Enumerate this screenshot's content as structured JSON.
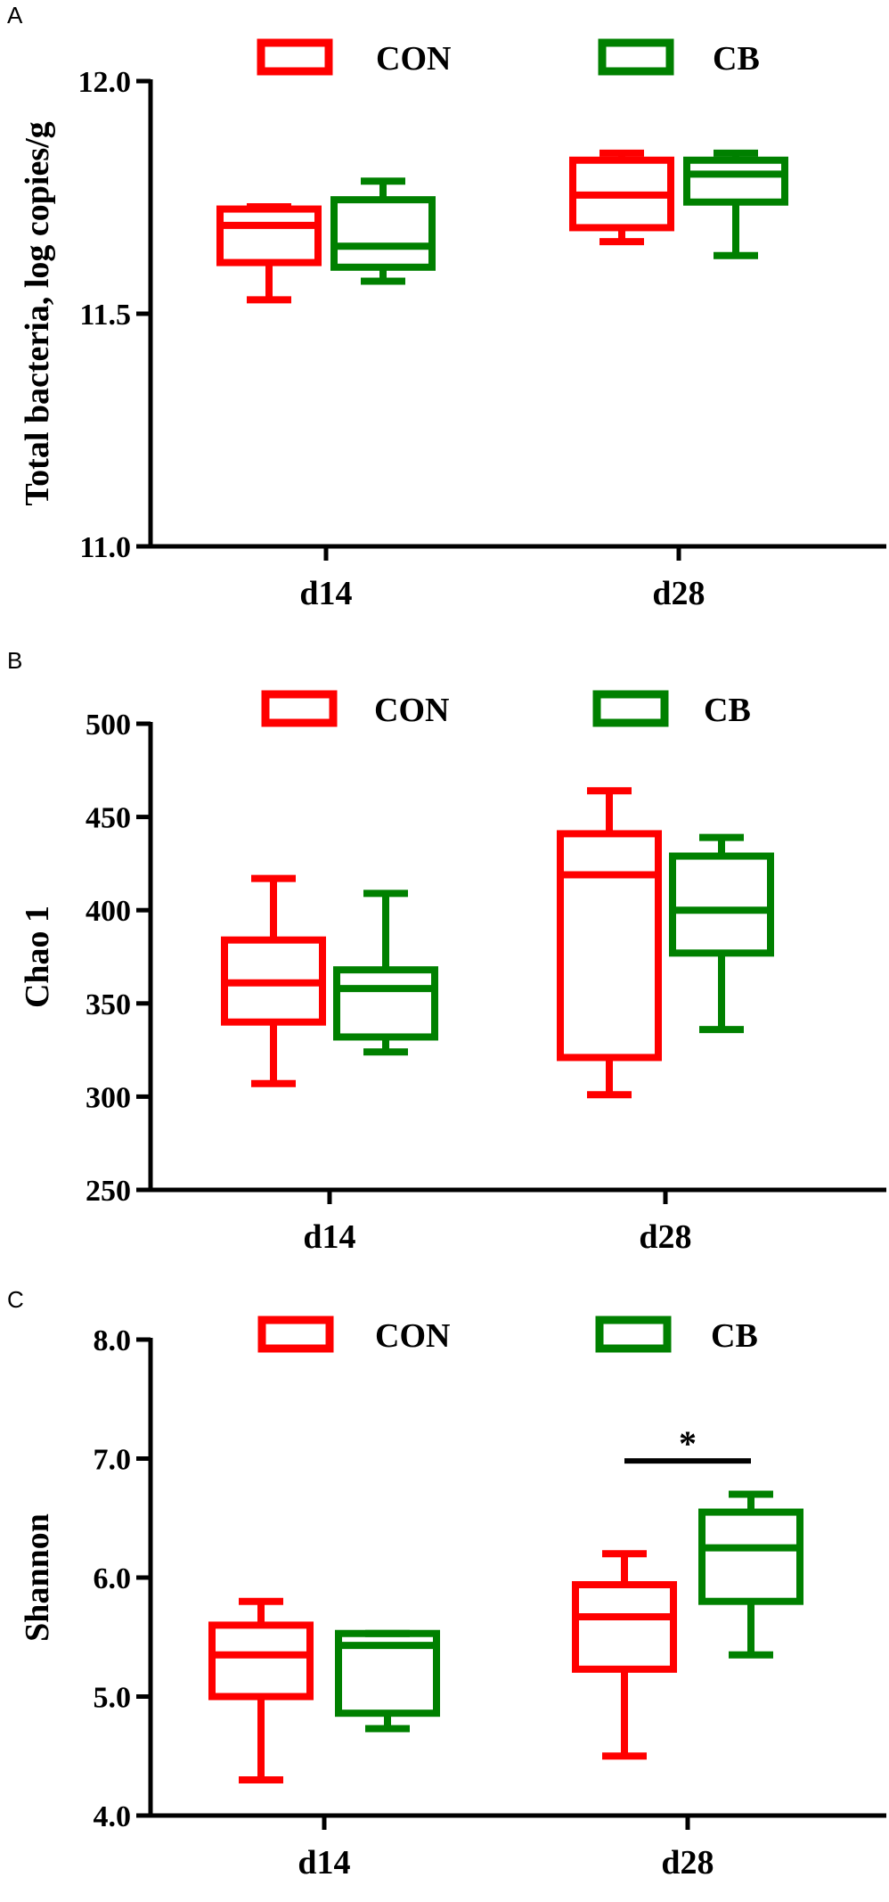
{
  "chart_data": [
    {
      "panel": "A",
      "type": "box",
      "ylabel": "Total bacteria, log copies/g",
      "ylim": [
        11.0,
        12.0
      ],
      "yticks": [
        "11.0",
        "11.5",
        "12.0"
      ],
      "categories": [
        "d14",
        "d28"
      ],
      "legend": [
        "CON",
        "CB"
      ],
      "series": [
        {
          "name": "CON",
          "color": "#ff0000",
          "boxes": [
            {
              "min": 11.53,
              "q1": 11.61,
              "median": 11.69,
              "q3": 11.725,
              "max": 11.73
            },
            {
              "min": 11.655,
              "q1": 11.685,
              "median": 11.755,
              "q3": 11.83,
              "max": 11.845
            }
          ]
        },
        {
          "name": "CB",
          "color": "#008000",
          "boxes": [
            {
              "min": 11.57,
              "q1": 11.6,
              "median": 11.645,
              "q3": 11.745,
              "max": 11.785
            },
            {
              "min": 11.625,
              "q1": 11.74,
              "median": 11.8,
              "q3": 11.83,
              "max": 11.845
            }
          ]
        }
      ]
    },
    {
      "panel": "B",
      "type": "box",
      "ylabel": "Chao 1",
      "ylim": [
        250,
        500
      ],
      "yticks": [
        "250",
        "300",
        "350",
        "400",
        "450",
        "500"
      ],
      "categories": [
        "d14",
        "d28"
      ],
      "legend": [
        "CON",
        "CB"
      ],
      "series": [
        {
          "name": "CON",
          "color": "#ff0000",
          "boxes": [
            {
              "min": 307,
              "q1": 340,
              "median": 361,
              "q3": 384,
              "max": 417
            },
            {
              "min": 301,
              "q1": 321,
              "median": 419,
              "q3": 441,
              "max": 464
            }
          ]
        },
        {
          "name": "CB",
          "color": "#008000",
          "boxes": [
            {
              "min": 324,
              "q1": 332,
              "median": 358,
              "q3": 368,
              "max": 409
            },
            {
              "min": 336,
              "q1": 377,
              "median": 400,
              "q3": 429,
              "max": 439
            }
          ]
        }
      ]
    },
    {
      "panel": "C",
      "type": "box",
      "ylabel": "Shannon",
      "ylim": [
        4.0,
        8.0
      ],
      "yticks": [
        "4.0",
        "5.0",
        "6.0",
        "7.0",
        "8.0"
      ],
      "categories": [
        "d14",
        "d28"
      ],
      "legend": [
        "CON",
        "CB"
      ],
      "series": [
        {
          "name": "CON",
          "color": "#ff0000",
          "boxes": [
            {
              "min": 4.3,
              "q1": 5.0,
              "median": 5.35,
              "q3": 5.6,
              "max": 5.8
            },
            {
              "min": 4.5,
              "q1": 5.23,
              "median": 5.67,
              "q3": 5.94,
              "max": 6.2
            }
          ]
        },
        {
          "name": "CB",
          "color": "#008000",
          "boxes": [
            {
              "min": 4.73,
              "q1": 4.86,
              "median": 5.43,
              "q3": 5.53,
              "max": 5.53
            },
            {
              "min": 5.35,
              "q1": 5.8,
              "median": 6.25,
              "q3": 6.55,
              "max": 6.7
            }
          ]
        }
      ],
      "annotations": [
        {
          "text": "*",
          "category": "d28",
          "y": 6.98
        }
      ]
    }
  ]
}
